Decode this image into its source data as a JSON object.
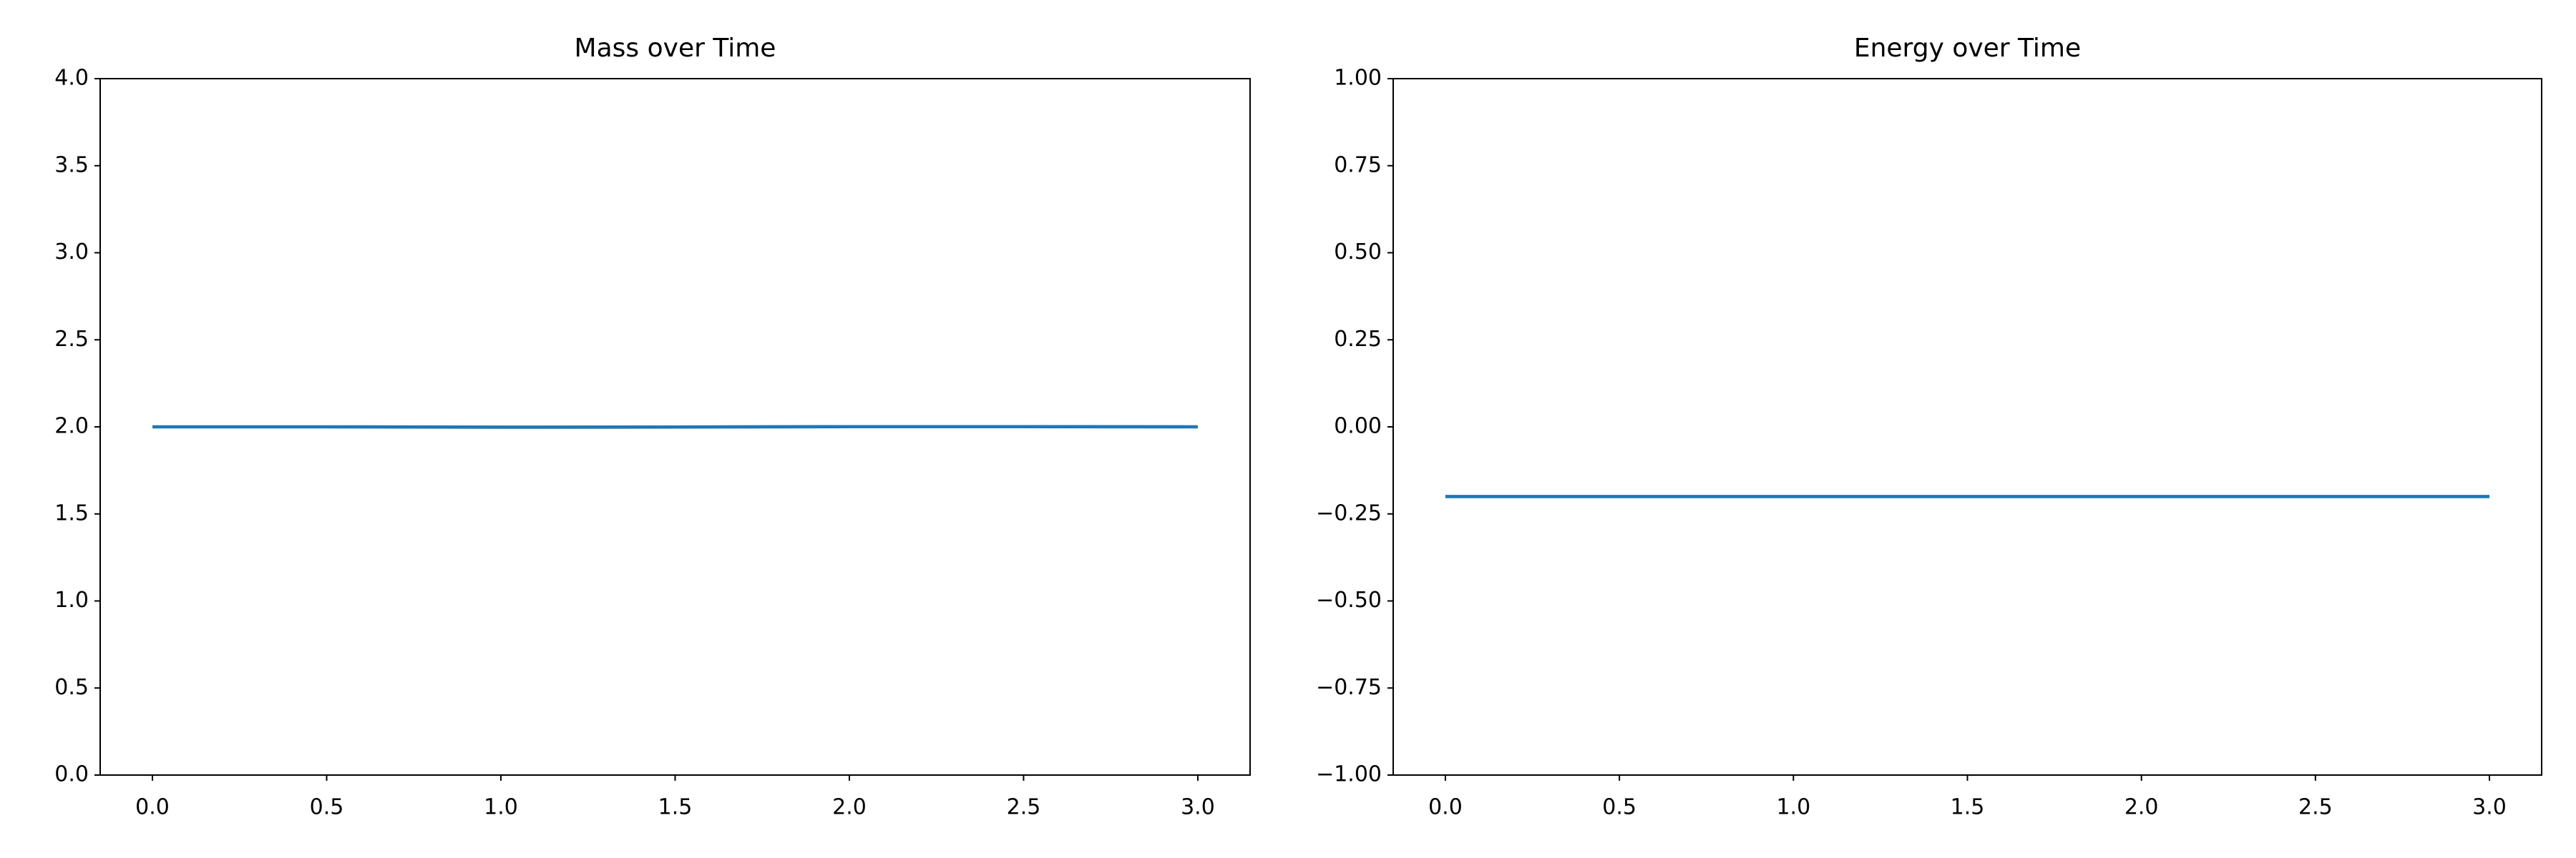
{
  "chart_data": [
    {
      "type": "line",
      "title": "Mass over Time",
      "x": [
        0,
        0.5,
        1,
        1.5,
        2,
        2.5,
        3
      ],
      "series": [
        {
          "name": "Mass",
          "color": "#1f77b4",
          "values": [
            2.0,
            2.0,
            1.998,
            1.999,
            2.001,
            2.001,
            2.0
          ]
        }
      ],
      "xlim": [
        -0.15,
        3.15
      ],
      "xticks": [
        {
          "value": 0,
          "label": "0.0"
        },
        0.5,
        {
          "value": 1,
          "label": "1.0"
        },
        1.5,
        {
          "value": 2,
          "label": "2.0"
        },
        2.5,
        {
          "value": 3,
          "label": "3.0"
        }
      ],
      "ylim": [
        0,
        4
      ],
      "yticks": [
        {
          "value": 0,
          "label": "0.0"
        },
        0.5,
        {
          "value": 1,
          "label": "1.0"
        },
        1.5,
        {
          "value": 2,
          "label": "2.0"
        },
        2.5,
        {
          "value": 3,
          "label": "3.0"
        },
        3.5,
        {
          "value": 4,
          "label": "4.0"
        }
      ]
    },
    {
      "type": "line",
      "title": "Energy over Time",
      "x": [
        0,
        0.5,
        1,
        1.5,
        2,
        2.5,
        3
      ],
      "series": [
        {
          "name": "Energy",
          "color": "#1f77b4",
          "values": [
            -0.2,
            -0.2,
            -0.2,
            -0.2,
            -0.2,
            -0.2,
            -0.2
          ]
        }
      ],
      "xlim": [
        -0.15,
        3.15
      ],
      "xticks": [
        {
          "value": 0,
          "label": "0.0"
        },
        0.5,
        {
          "value": 1,
          "label": "1.0"
        },
        1.5,
        {
          "value": 2,
          "label": "2.0"
        },
        2.5,
        {
          "value": 3,
          "label": "3.0"
        }
      ],
      "ylim": [
        -1,
        1
      ],
      "yticks": [
        {
          "value": -1,
          "label": "−1.00"
        },
        {
          "value": -0.75,
          "label": "−0.75"
        },
        {
          "value": -0.5,
          "label": "−0.50"
        },
        {
          "value": -0.25,
          "label": "−0.25"
        },
        {
          "value": 0,
          "label": "0.00"
        },
        0.25,
        {
          "value": 0.5,
          "label": "0.50"
        },
        0.75,
        {
          "value": 1,
          "label": "1.00"
        }
      ]
    }
  ]
}
